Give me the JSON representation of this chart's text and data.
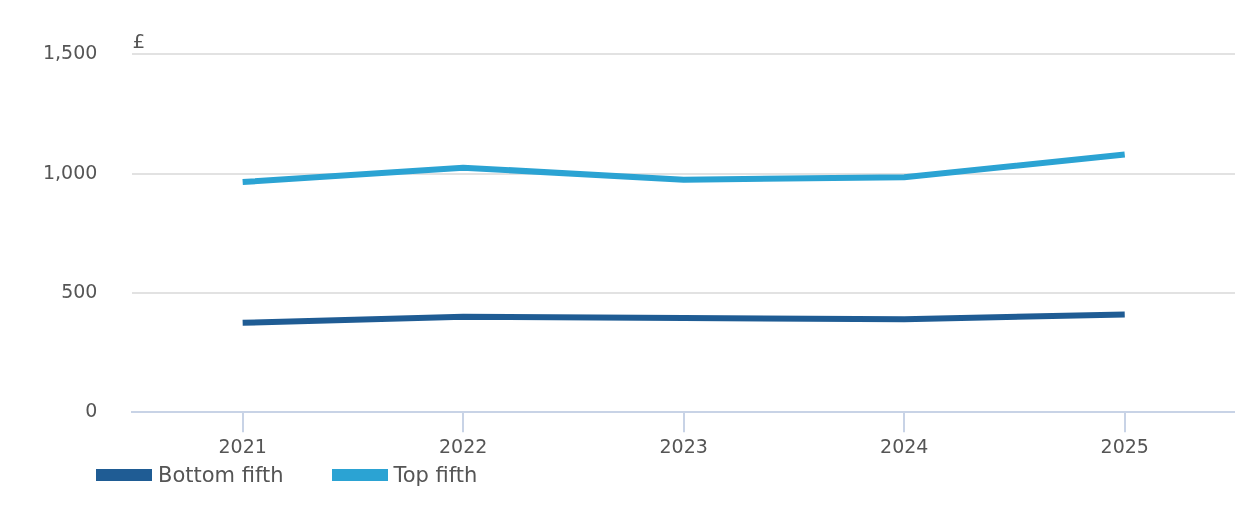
{
  "chart_data": {
    "type": "line",
    "ylabel": "£",
    "categories": [
      "2021",
      "2022",
      "2023",
      "2024",
      "2025"
    ],
    "series": [
      {
        "name": "Bottom fifth",
        "color": "#1f5c94",
        "values": [
          375,
          400,
          395,
          390,
          410
        ]
      },
      {
        "name": "Top fifth",
        "color": "#2ba3d3",
        "values": [
          965,
          1025,
          975,
          985,
          1080
        ]
      }
    ],
    "ylim": [
      0,
      1500
    ],
    "yticks": [
      0,
      {
        "value": 500,
        "label": "500"
      },
      {
        "value": 1000,
        "label": "1,000"
      },
      {
        "value": 1500,
        "label": "1,500"
      }
    ],
    "grid": "y",
    "legend": "bottom left",
    "marker": "none",
    "line_style": "solid"
  }
}
